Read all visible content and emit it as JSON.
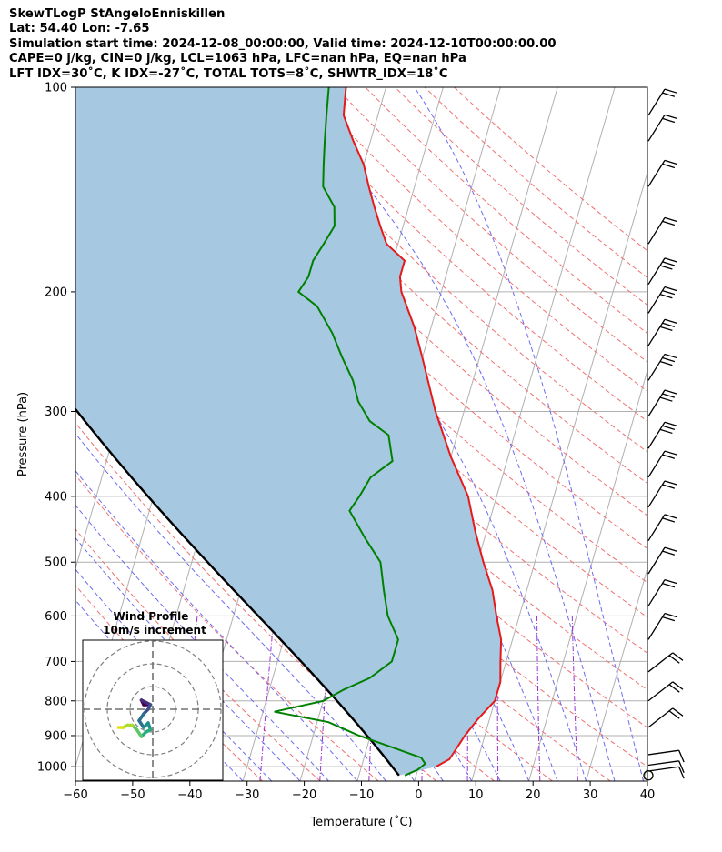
{
  "header": {
    "line1": "SkewTLogP StAngeloEnniskillen",
    "line2": "Lat: 54.40   Lon: -7.65",
    "line3": "Simulation start time: 2024-12-08_00:00:00, Valid time: 2024-12-10T00:00:00.00",
    "line4": "CAPE=0 j/kg, CIN=0 j/kg, LCL=1063 hPa, LFC=nan hPa, EQ=nan hPa",
    "line5": "LFT IDX=30˚C, K IDX=-27˚C, TOTAL TOTS=8˚C, SHWTR_IDX=18˚C"
  },
  "chart_data": {
    "type": "line",
    "chart_kind": "skew-T log-P diagram",
    "xlabel": "Temperature (˚C)",
    "ylabel": "Pressure (hPa)",
    "xlim": [
      -60,
      40
    ],
    "ylim": [
      1050,
      100
    ],
    "y_scale": "log",
    "x_ticks": [
      -60,
      -50,
      -40,
      -30,
      -20,
      -10,
      0,
      10,
      20,
      30,
      40
    ],
    "y_ticks": [
      100,
      200,
      300,
      400,
      500,
      600,
      700,
      800,
      900,
      1000
    ],
    "grid": true,
    "series": [
      {
        "role": "temperature",
        "color": "#e41a1c",
        "points": [
          [
            1000,
            3
          ],
          [
            975,
            5
          ],
          [
            950,
            5.5
          ],
          [
            900,
            6.5
          ],
          [
            850,
            8
          ],
          [
            800,
            10
          ],
          [
            750,
            10
          ],
          [
            700,
            9
          ],
          [
            650,
            8
          ],
          [
            600,
            6
          ],
          [
            550,
            4
          ],
          [
            500,
            1
          ],
          [
            450,
            -2
          ],
          [
            400,
            -5
          ],
          [
            350,
            -10
          ],
          [
            300,
            -15
          ],
          [
            250,
            -20
          ],
          [
            225,
            -23
          ],
          [
            200,
            -27
          ],
          [
            190,
            -28
          ],
          [
            180,
            -28
          ],
          [
            170,
            -32
          ],
          [
            160,
            -34
          ],
          [
            150,
            -36
          ],
          [
            140,
            -38
          ],
          [
            130,
            -40
          ],
          [
            120,
            -43
          ],
          [
            110,
            -46
          ],
          [
            100,
            -47
          ]
        ]
      },
      {
        "role": "dewpoint",
        "color": "#008000",
        "points": [
          [
            1030,
            -2
          ],
          [
            1010,
            0
          ],
          [
            990,
            1
          ],
          [
            970,
            0
          ],
          [
            940,
            -5
          ],
          [
            900,
            -12
          ],
          [
            860,
            -18
          ],
          [
            830,
            -28
          ],
          [
            800,
            -20
          ],
          [
            770,
            -17
          ],
          [
            740,
            -13
          ],
          [
            700,
            -10
          ],
          [
            650,
            -10
          ],
          [
            600,
            -13
          ],
          [
            550,
            -15
          ],
          [
            500,
            -17
          ],
          [
            460,
            -21
          ],
          [
            420,
            -25
          ],
          [
            400,
            -24
          ],
          [
            375,
            -23
          ],
          [
            355,
            -20
          ],
          [
            325,
            -22
          ],
          [
            310,
            -26
          ],
          [
            290,
            -29
          ],
          [
            270,
            -31
          ],
          [
            250,
            -34
          ],
          [
            230,
            -37
          ],
          [
            210,
            -41
          ],
          [
            200,
            -45
          ],
          [
            190,
            -44
          ],
          [
            180,
            -44
          ],
          [
            170,
            -43
          ],
          [
            160,
            -42
          ],
          [
            150,
            -43
          ],
          [
            140,
            -46
          ],
          [
            130,
            -47
          ],
          [
            120,
            -48
          ],
          [
            110,
            -49
          ],
          [
            100,
            -50
          ]
        ]
      },
      {
        "role": "parcel",
        "color": "#000000",
        "path": "moist adiabat from surface (~ -3˚C at 1030 hPa)"
      }
    ],
    "shading": "area between temperature and parcel profile (CIN region)",
    "shading_color": "#a6c8e0",
    "background_lines": [
      {
        "name": "isotherms",
        "color": "#b0b0b0"
      },
      {
        "name": "dry adiabats",
        "color": "#f07070",
        "style": "dashed"
      },
      {
        "name": "moist adiabats",
        "color": "#6b6bf0",
        "style": "dashed"
      },
      {
        "name": "mixing ratio lines",
        "color": "#9b30d0",
        "style": "dash-dot"
      }
    ],
    "wind_barbs": {
      "side": "right",
      "levels_hpa": [
        1030,
        1015,
        995,
        960,
        875,
        800,
        725,
        650,
        580,
        520,
        465,
        415,
        375,
        340,
        305,
        270,
        240,
        215,
        195,
        170,
        140,
        120,
        110
      ]
    },
    "hodograph": {
      "title": "Wind Profile",
      "subtitle": "10m/s increment",
      "rings_ms": [
        10,
        20,
        30
      ],
      "colormap": "viridis",
      "trace_uv": [
        [
          -2,
          2
        ],
        [
          -4,
          2
        ],
        [
          -5,
          4
        ],
        [
          -3,
          3
        ],
        [
          -1,
          2
        ],
        [
          -2,
          0
        ],
        [
          -4,
          -2
        ],
        [
          -6,
          -5
        ],
        [
          -4,
          -8
        ],
        [
          -2,
          -6
        ],
        [
          -1,
          -9
        ],
        [
          -3,
          -10
        ],
        [
          -5,
          -12
        ],
        [
          -7,
          -9
        ],
        [
          -9,
          -7
        ],
        [
          -11,
          -7
        ],
        [
          -13,
          -8
        ],
        [
          -15,
          -8
        ]
      ]
    }
  }
}
